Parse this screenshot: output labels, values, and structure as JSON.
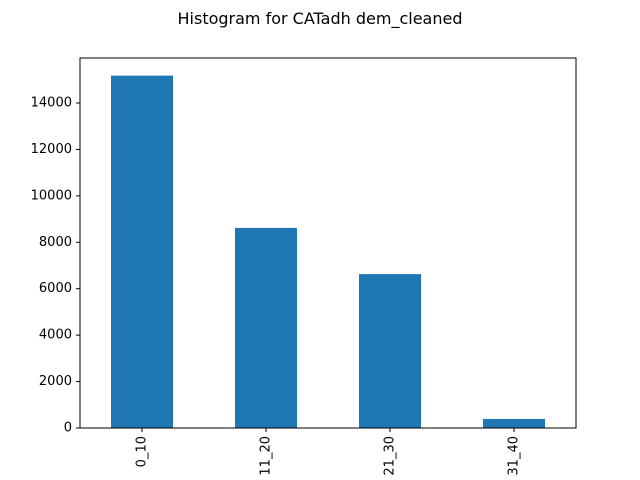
{
  "chart_data": {
    "type": "bar",
    "title": "Histogram for CATadh dem_cleaned",
    "xlabel": "",
    "ylabel": "",
    "categories": [
      "0_10",
      "11_20",
      "21_30",
      "31_40"
    ],
    "values": [
      15180,
      8620,
      6630,
      390
    ],
    "ylim": [
      0,
      15939
    ],
    "yticks": [
      0,
      2000,
      4000,
      6000,
      8000,
      10000,
      12000,
      14000
    ],
    "ytick_labels": [
      "0",
      "2000",
      "4000",
      "6000",
      "8000",
      "10000",
      "12000",
      "14000"
    ],
    "grid": false,
    "legend": false,
    "bar_color": "#1f77b4"
  }
}
